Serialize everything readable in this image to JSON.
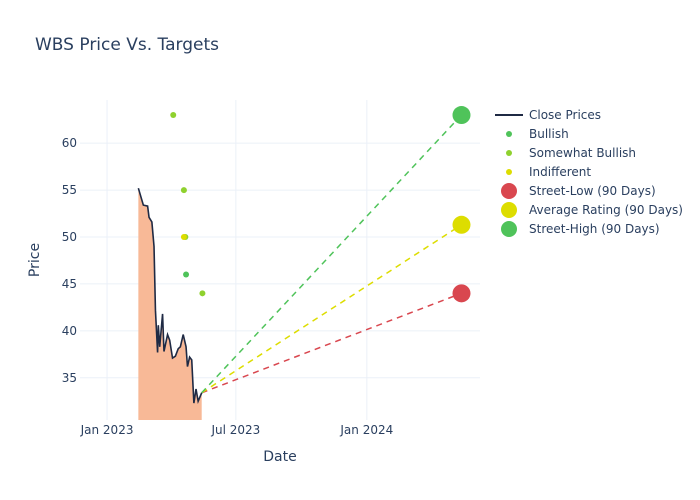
{
  "chart_data": {
    "type": "line",
    "title": "WBS Price Vs. Targets",
    "xlabel": "Date",
    "ylabel": "Price",
    "xlim": [
      "2022-11-24",
      "2024-06-08"
    ],
    "ylim": [
      30.5,
      64.6
    ],
    "x_ticks": [
      {
        "date": "2023-01-01",
        "label": "Jan 2023"
      },
      {
        "date": "2023-07-01",
        "label": "Jul 2023"
      },
      {
        "date": "2024-01-01",
        "label": "Jan 2024"
      }
    ],
    "y_ticks": [
      35,
      40,
      45,
      50,
      55,
      60
    ],
    "grid": true,
    "legend_position": "right",
    "close_prices": {
      "name": "Close Prices",
      "color": "#1f2a44",
      "fill_color": "#f8b997",
      "points": [
        [
          "2023-02-14",
          55.2
        ],
        [
          "2023-02-21",
          53.4
        ],
        [
          "2023-02-27",
          53.3
        ],
        [
          "2023-03-01",
          52.1
        ],
        [
          "2023-03-05",
          51.6
        ],
        [
          "2023-03-08",
          49.0
        ],
        [
          "2023-03-10",
          42.2
        ],
        [
          "2023-03-13",
          37.7
        ],
        [
          "2023-03-14",
          40.6
        ],
        [
          "2023-03-16",
          38.3
        ],
        [
          "2023-03-20",
          41.8
        ],
        [
          "2023-03-22",
          37.8
        ],
        [
          "2023-03-27",
          39.6
        ],
        [
          "2023-03-30",
          39.0
        ],
        [
          "2023-04-03",
          37.1
        ],
        [
          "2023-04-07",
          37.3
        ],
        [
          "2023-04-11",
          38.1
        ],
        [
          "2023-04-14",
          38.3
        ],
        [
          "2023-04-18",
          39.6
        ],
        [
          "2023-04-22",
          38.3
        ],
        [
          "2023-04-24",
          36.2
        ],
        [
          "2023-04-27",
          37.2
        ],
        [
          "2023-04-30",
          36.9
        ],
        [
          "2023-05-03",
          32.3
        ],
        [
          "2023-05-06",
          33.8
        ],
        [
          "2023-05-09",
          32.5
        ],
        [
          "2023-05-14",
          33.4
        ]
      ]
    },
    "ratings": [
      {
        "name": "Bullish",
        "color": "#4fc35a",
        "points": [
          [
            "2023-04-22",
            46
          ]
        ]
      },
      {
        "name": "Somewhat Bullish",
        "color": "#8fd12e",
        "points": [
          [
            "2023-04-04",
            63
          ],
          [
            "2023-04-19",
            55
          ],
          [
            "2023-04-21",
            50
          ],
          [
            "2023-05-15",
            44
          ]
        ]
      },
      {
        "name": "Indifferent",
        "color": "#dddd00",
        "points": [
          [
            "2023-04-19",
            50
          ]
        ]
      }
    ],
    "targets": [
      {
        "name": "Street-Low (90 Days)",
        "color": "#d9474f",
        "date": "2024-05-13",
        "value": 44
      },
      {
        "name": "Average Rating (90 Days)",
        "color": "#dddd00",
        "date": "2024-05-13",
        "value": 51.3
      },
      {
        "name": "Street-High (90 Days)",
        "color": "#4fc35a",
        "date": "2024-05-13",
        "value": 63
      }
    ]
  }
}
